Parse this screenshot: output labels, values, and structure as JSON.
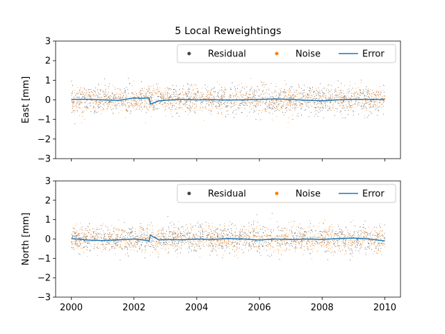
{
  "chart_data": [
    {
      "type": "scatter",
      "title": "5 Local Reweightings",
      "xlabel": "",
      "ylabel": "East [mm]",
      "xlim": [
        1999.5,
        2010.5
      ],
      "ylim": [
        -3,
        3
      ],
      "xticks": [
        "2000",
        "2002",
        "2004",
        "2006",
        "2008",
        "2010"
      ],
      "yticks": [
        "−3",
        "−2",
        "−1",
        "0",
        "1",
        "2",
        "3"
      ],
      "x_range": [
        2000,
        2010
      ],
      "legend": {
        "placement": "top-right",
        "entries": [
          "Residual",
          "Noise",
          "Error"
        ]
      },
      "series": [
        {
          "name": "Residual",
          "type": "scatter",
          "color": "#444444",
          "spread_sd": 0.35
        },
        {
          "name": "Noise",
          "type": "scatter",
          "color": "#ff7f0e",
          "spread_sd": 0.35
        },
        {
          "name": "Error",
          "type": "line",
          "color": "#1f77b4",
          "x": [
            2000.0,
            2000.5,
            2001.0,
            2001.5,
            2002.0,
            2002.3,
            2002.48,
            2002.52,
            2002.8,
            2003.0,
            2003.5,
            2004.0,
            2004.5,
            2005.0,
            2005.5,
            2006.0,
            2006.5,
            2007.0,
            2007.5,
            2008.0,
            2008.5,
            2009.0,
            2009.5,
            2010.0
          ],
          "y": [
            0.02,
            0.03,
            0.0,
            -0.03,
            0.1,
            0.08,
            0.1,
            -0.22,
            -0.05,
            -0.02,
            0.02,
            0.0,
            0.01,
            -0.01,
            0.0,
            0.02,
            0.05,
            0.02,
            -0.02,
            -0.05,
            0.0,
            0.02,
            0.03,
            0.02
          ]
        }
      ]
    },
    {
      "type": "scatter",
      "title": "",
      "xlabel": "",
      "ylabel": "North [mm]",
      "xlim": [
        1999.5,
        2010.5
      ],
      "ylim": [
        -3,
        3
      ],
      "xticks": [
        "2000",
        "2002",
        "2004",
        "2006",
        "2008",
        "2010"
      ],
      "yticks": [
        "−3",
        "−2",
        "−1",
        "0",
        "1",
        "2",
        "3"
      ],
      "x_range": [
        2000,
        2010
      ],
      "legend": {
        "placement": "top-right",
        "entries": [
          "Residual",
          "Noise",
          "Error"
        ]
      },
      "series": [
        {
          "name": "Residual",
          "type": "scatter",
          "color": "#444444",
          "spread_sd": 0.35
        },
        {
          "name": "Noise",
          "type": "scatter",
          "color": "#ff7f0e",
          "spread_sd": 0.35
        },
        {
          "name": "Error",
          "type": "line",
          "color": "#1f77b4",
          "x": [
            2000.0,
            2000.5,
            2001.0,
            2001.5,
            2002.0,
            2002.3,
            2002.48,
            2002.52,
            2002.8,
            2003.0,
            2003.5,
            2004.0,
            2004.5,
            2005.0,
            2005.5,
            2006.0,
            2006.5,
            2007.0,
            2007.5,
            2008.0,
            2008.5,
            2009.0,
            2009.5,
            2010.0
          ],
          "y": [
            0.02,
            -0.05,
            -0.08,
            -0.04,
            0.0,
            -0.05,
            -0.1,
            0.2,
            -0.05,
            -0.03,
            -0.04,
            0.0,
            -0.02,
            0.02,
            0.0,
            -0.05,
            0.0,
            -0.03,
            0.0,
            -0.02,
            0.02,
            0.05,
            0.0,
            -0.1
          ]
        }
      ]
    }
  ]
}
